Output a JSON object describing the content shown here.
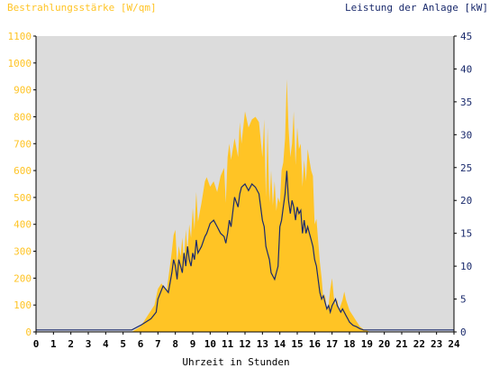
{
  "chart_data": {
    "type": "area",
    "title_left": "Bestrahlungsstärke [W/qm]",
    "title_right": "Leistung der Anlage [kW]",
    "xlabel": "Uhrzeit in Stunden",
    "x_ticks": [
      "0",
      "1",
      "2",
      "3",
      "4",
      "5",
      "6",
      "7",
      "8",
      "9",
      "10",
      "11",
      "12",
      "13",
      "14",
      "15",
      "16",
      "17",
      "18",
      "19",
      "20",
      "21",
      "22",
      "23",
      "24"
    ],
    "xlim": [
      0,
      24
    ],
    "y_left": {
      "lim": [
        0,
        1100
      ],
      "ticks": [
        "0",
        "100",
        "200",
        "300",
        "400",
        "500",
        "600",
        "700",
        "800",
        "900",
        "1000",
        "1100"
      ],
      "color": "#FFC425"
    },
    "y_right": {
      "lim": [
        0,
        45
      ],
      "ticks": [
        "0",
        "5",
        "10",
        "15",
        "20",
        "25",
        "30",
        "35",
        "40",
        "45"
      ],
      "color": "#1A2A6C"
    },
    "grid": false,
    "plot_background": "#DCDCDC",
    "series": [
      {
        "name": "Bestrahlungsstärke [W/qm]",
        "axis": "left",
        "type": "area",
        "color": "#FFC425",
        "x": [
          0,
          5.5,
          6,
          6.2,
          6.5,
          6.8,
          7,
          7.2,
          7.5,
          7.8,
          7.9,
          8,
          8.1,
          8.2,
          8.3,
          8.4,
          8.5,
          8.6,
          8.7,
          8.8,
          8.9,
          9,
          9.1,
          9.2,
          9.3,
          9.5,
          9.7,
          9.8,
          10,
          10.2,
          10.4,
          10.6,
          10.8,
          10.9,
          11,
          11.1,
          11.2,
          11.4,
          11.6,
          11.7,
          11.8,
          12,
          12.2,
          12.4,
          12.6,
          12.8,
          13,
          13.1,
          13.2,
          13.3,
          13.4,
          13.5,
          13.6,
          13.7,
          13.8,
          13.9,
          14,
          14.1,
          14.2,
          14.3,
          14.4,
          14.5,
          14.6,
          14.7,
          14.8,
          14.9,
          15,
          15.1,
          15.2,
          15.3,
          15.4,
          15.5,
          15.6,
          15.7,
          15.8,
          15.9,
          16,
          16.1,
          16.2,
          16.3,
          16.4,
          16.5,
          16.6,
          16.7,
          16.8,
          16.9,
          17,
          17.1,
          17.2,
          17.3,
          17.4,
          17.5,
          17.6,
          17.7,
          17.8,
          17.9,
          18,
          18.2,
          18.4,
          18.6,
          18.8,
          19,
          19.2,
          19.4,
          19.6,
          20,
          24
        ],
        "y": [
          0,
          0,
          20,
          40,
          70,
          100,
          160,
          180,
          150,
          300,
          360,
          380,
          250,
          320,
          280,
          350,
          260,
          380,
          300,
          400,
          350,
          460,
          380,
          520,
          410,
          480,
          560,
          575,
          540,
          560,
          520,
          580,
          610,
          480,
          650,
          700,
          640,
          720,
          650,
          780,
          700,
          820,
          760,
          790,
          800,
          780,
          650,
          790,
          500,
          760,
          480,
          600,
          470,
          560,
          450,
          500,
          480,
          600,
          630,
          720,
          940,
          760,
          650,
          700,
          820,
          620,
          760,
          680,
          700,
          540,
          640,
          560,
          680,
          640,
          600,
          580,
          400,
          420,
          340,
          260,
          200,
          120,
          140,
          80,
          100,
          160,
          200,
          130,
          100,
          120,
          80,
          100,
          120,
          150,
          120,
          100,
          80,
          60,
          40,
          20,
          10,
          5,
          0,
          0,
          0,
          0,
          0
        ]
      },
      {
        "name": "Leistung der Anlage [kW]",
        "axis": "right",
        "type": "line",
        "color": "#1A2A6C",
        "x": [
          0,
          5.5,
          6,
          6.3,
          6.6,
          6.9,
          7,
          7.3,
          7.6,
          7.8,
          7.9,
          8,
          8.1,
          8.2,
          8.3,
          8.4,
          8.5,
          8.6,
          8.7,
          8.8,
          8.9,
          9,
          9.1,
          9.2,
          9.3,
          9.5,
          9.7,
          9.8,
          10,
          10.2,
          10.4,
          10.6,
          10.8,
          10.9,
          11,
          11.1,
          11.2,
          11.4,
          11.6,
          11.7,
          11.8,
          12,
          12.2,
          12.4,
          12.6,
          12.8,
          13,
          13.1,
          13.2,
          13.3,
          13.4,
          13.5,
          13.6,
          13.7,
          13.8,
          13.9,
          14,
          14.1,
          14.2,
          14.3,
          14.4,
          14.5,
          14.6,
          14.7,
          14.8,
          14.9,
          15,
          15.1,
          15.2,
          15.3,
          15.4,
          15.5,
          15.6,
          15.7,
          15.8,
          15.9,
          16,
          16.1,
          16.2,
          16.3,
          16.4,
          16.5,
          16.6,
          16.7,
          16.8,
          16.9,
          17,
          17.1,
          17.2,
          17.3,
          17.4,
          17.5,
          17.6,
          17.7,
          17.8,
          17.9,
          18,
          18.2,
          18.4,
          18.6,
          18.8,
          19,
          19.2,
          19.4,
          19.6,
          20,
          24
        ],
        "y": [
          0.3,
          0.3,
          1,
          1.5,
          2,
          3,
          5,
          7,
          6,
          9,
          11,
          10,
          8,
          11,
          10,
          9,
          12,
          10,
          13,
          11,
          10,
          12,
          11,
          14,
          12,
          13,
          14.5,
          15,
          16.5,
          17,
          16,
          15,
          14.5,
          13.5,
          15,
          17,
          16,
          20.5,
          19,
          21,
          22,
          22.5,
          21.5,
          22.5,
          22,
          21,
          17,
          16,
          13,
          12,
          11,
          9,
          8.5,
          8,
          9,
          10,
          16,
          17,
          19,
          21,
          24.5,
          20,
          18,
          20,
          19,
          17,
          19,
          18,
          18.5,
          15,
          17,
          15,
          16,
          15,
          14,
          13,
          11,
          10,
          8,
          6,
          5,
          5.5,
          4.5,
          3.5,
          4,
          3,
          4,
          4.5,
          5,
          4,
          3.5,
          3,
          3.5,
          3,
          2.5,
          2,
          1.5,
          1,
          0.8,
          0.5,
          0.3,
          0.3,
          0.3,
          0.3,
          0.3,
          0.3,
          0.3
        ]
      }
    ]
  }
}
